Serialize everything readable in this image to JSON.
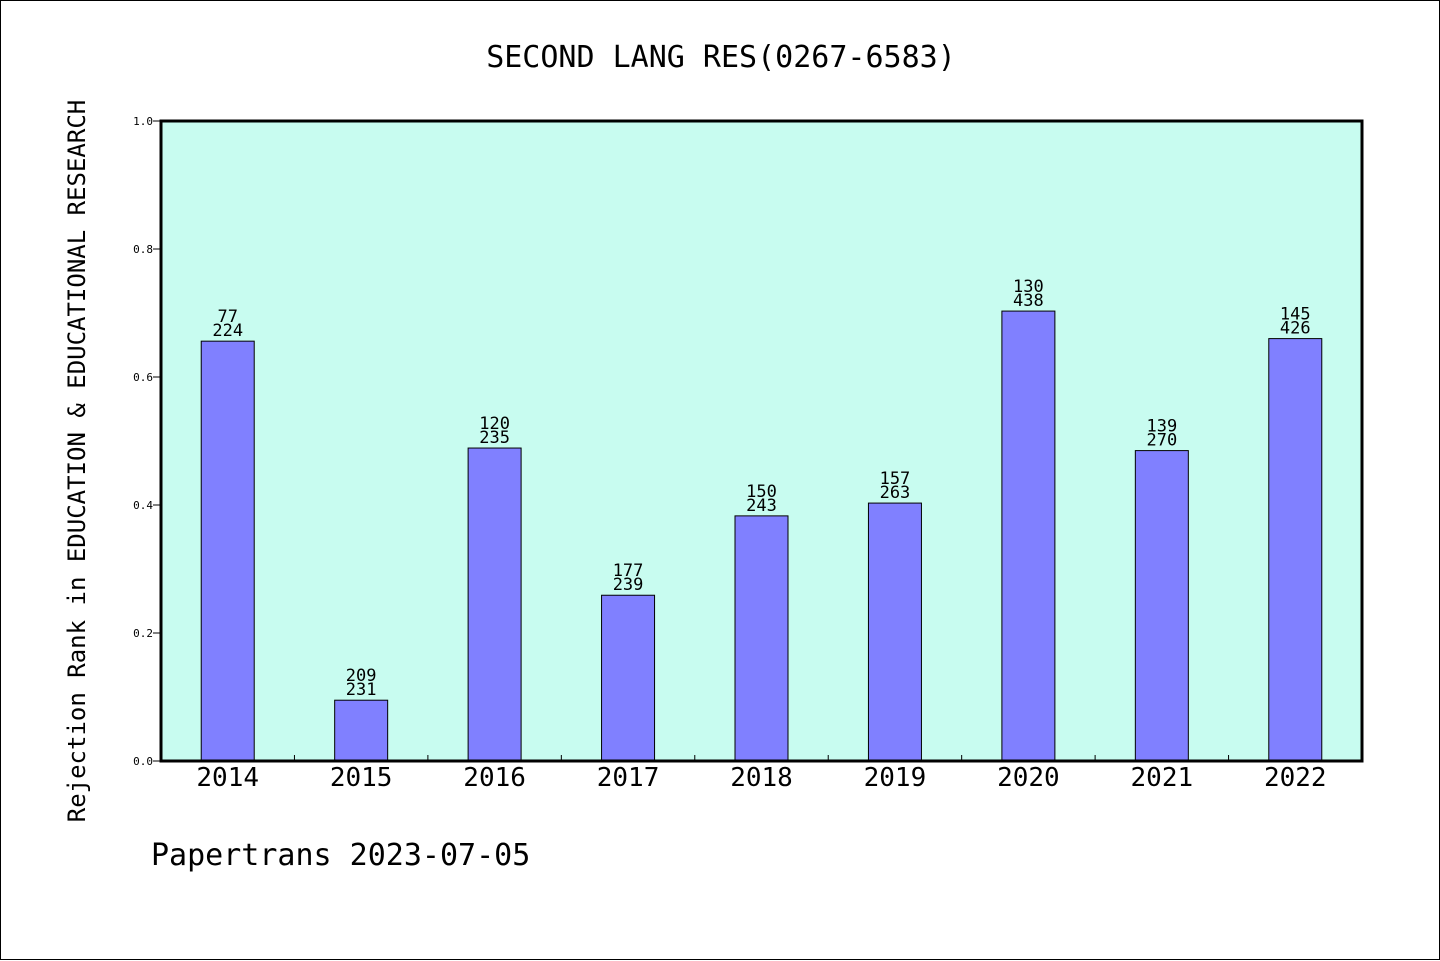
{
  "chart_data": {
    "type": "bar",
    "title": "SECOND LANG RES(0267-6583)",
    "xlabel": "",
    "ylabel": "Rejection Rank in EDUCATION & EDUCATIONAL RESEARCH",
    "categories": [
      "2014",
      "2015",
      "2016",
      "2017",
      "2018",
      "2019",
      "2020",
      "2021",
      "2022"
    ],
    "values": [
      0.656,
      0.095,
      0.489,
      0.259,
      0.383,
      0.403,
      0.703,
      0.485,
      0.66
    ],
    "data_labels": [
      [
        "77",
        "224"
      ],
      [
        "209",
        "231"
      ],
      [
        "120",
        "235"
      ],
      [
        "177",
        "239"
      ],
      [
        "150",
        "243"
      ],
      [
        "157",
        "263"
      ],
      [
        "130",
        "438"
      ],
      [
        "139",
        "270"
      ],
      [
        "145",
        "426"
      ]
    ],
    "ylim": [
      0,
      1.0
    ],
    "yticks": [
      "0.0",
      "0.2",
      "0.4",
      "0.6",
      "0.8",
      "1.0"
    ],
    "grid": false,
    "legend": "none",
    "colors": {
      "plot_background": "#c8fcf0",
      "bar_fill": "#8080ff",
      "bar_stroke": "#000000"
    }
  },
  "footer": {
    "text": "Papertrans 2023-07-05"
  }
}
